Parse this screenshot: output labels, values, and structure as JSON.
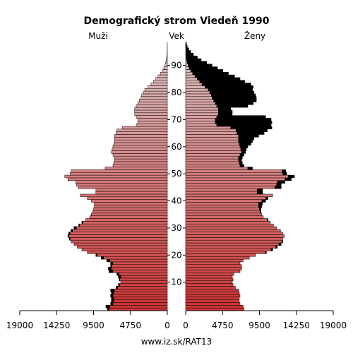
{
  "chart_data": {
    "type": "bar",
    "title": "Demografický strom Viedeň 1990",
    "left_label": "Muži",
    "center_label": "Vek",
    "right_label": "Ženy",
    "footer": "www.iz.sk/RAT13",
    "x_ticks": [
      "19000",
      "14250",
      "9500",
      "4750",
      "0"
    ],
    "x_ticks_right": [
      "0",
      "4750",
      "9500",
      "14250",
      "19000"
    ],
    "x_max": 19000,
    "age_ticks": [
      "10",
      "20",
      "30",
      "40",
      "50",
      "60",
      "70",
      "80",
      "90"
    ],
    "ages_from": 0,
    "ages_to": 98,
    "colors": {
      "male_young": "#cc3333",
      "male_old": "#dcc8c8",
      "female_young": "#cc3333",
      "female_old": "#dcc8c8",
      "excess": "#000000"
    },
    "series": [
      {
        "name": "Muži",
        "values": [
          7700,
          7900,
          7300,
          7200,
          7200,
          7300,
          7200,
          7300,
          6600,
          6300,
          6000,
          6200,
          6300,
          6500,
          7500,
          7600,
          7300,
          7300,
          7800,
          8500,
          9200,
          10300,
          11000,
          11600,
          12000,
          12400,
          12600,
          12800,
          12700,
          12400,
          12000,
          11400,
          11000,
          10500,
          10000,
          9800,
          9600,
          9500,
          9400,
          9400,
          9800,
          10300,
          11200,
          9200,
          9200,
          11500,
          11700,
          11800,
          12800,
          13200,
          12500,
          12400,
          8000,
          7000,
          6900,
          6800,
          6800,
          7000,
          7200,
          7100,
          7000,
          6900,
          6800,
          6800,
          6800,
          6600,
          6500,
          5800,
          4000,
          3800,
          3800,
          4000,
          4200,
          4200,
          4200,
          4000,
          3800,
          3600,
          3400,
          3300,
          3100,
          2900,
          2500,
          2100,
          1800,
          1500,
          1200,
          900,
          650,
          450,
          300,
          200,
          130,
          80,
          50,
          30,
          20,
          10,
          5
        ]
      },
      {
        "name": "Ženy",
        "values": [
          7500,
          7400,
          7000,
          6900,
          6900,
          7000,
          6900,
          6800,
          6400,
          6100,
          6000,
          6100,
          6000,
          6200,
          7000,
          7200,
          7200,
          7000,
          7400,
          8200,
          9000,
          10400,
          11200,
          11800,
          12300,
          12500,
          12500,
          12700,
          12500,
          12200,
          11700,
          11300,
          10900,
          10600,
          10000,
          9800,
          9700,
          9700,
          9800,
          9900,
          10300,
          10600,
          11200,
          9900,
          9900,
          12300,
          12300,
          12800,
          13600,
          14000,
          13000,
          12900,
          8600,
          7500,
          7300,
          7200,
          7300,
          7500,
          7700,
          7800,
          8000,
          8400,
          8600,
          8800,
          9400,
          10100,
          10500,
          11100,
          11000,
          11100,
          11000,
          10300,
          6000,
          6000,
          5800,
          8000,
          8700,
          9100,
          9100,
          9000,
          8800,
          8600,
          8700,
          8400,
          7600,
          7000,
          6300,
          5500,
          4800,
          4100,
          3400,
          2700,
          2000,
          1500,
          1000,
          650,
          400,
          200,
          100
        ]
      }
    ]
  }
}
